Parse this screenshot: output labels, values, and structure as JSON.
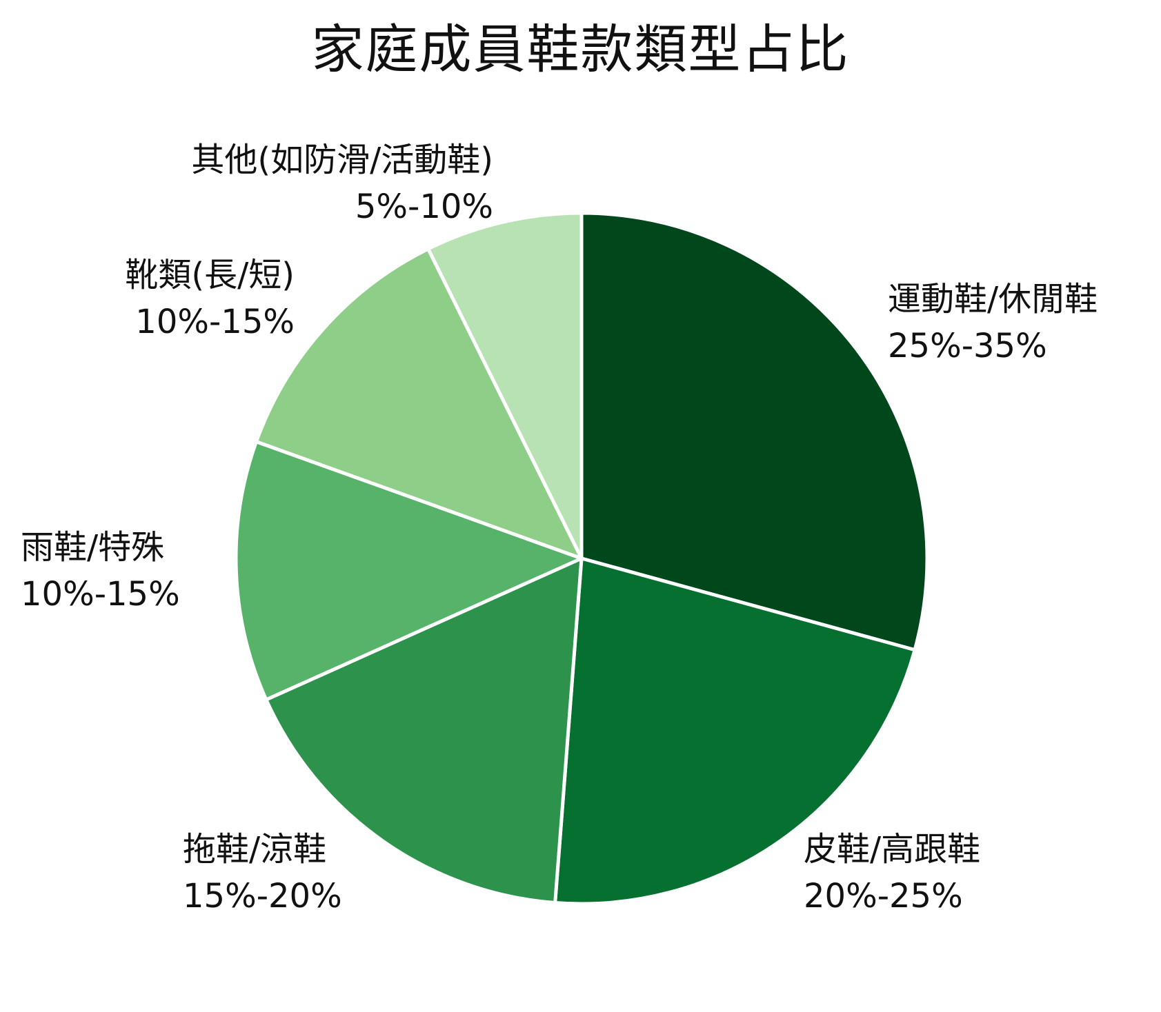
{
  "chart_data": {
    "type": "pie",
    "title": "家庭成員鞋款類型占比",
    "categories": [
      "運動鞋/休閒鞋",
      "皮鞋/高跟鞋",
      "拖鞋/涼鞋",
      "雨鞋/特殊",
      "靴類(長/短)",
      "其他(如防滑/活動鞋)"
    ],
    "ranges": [
      "25%-35%",
      "20%-25%",
      "15%-20%",
      "10%-15%",
      "10%-15%",
      "5%-10%"
    ],
    "values": [
      30,
      22.5,
      17.5,
      12.5,
      12.5,
      7.5
    ],
    "colors": [
      "#00471c",
      "#067030",
      "#2d924c",
      "#56b369",
      "#8fce89",
      "#b8e2b3"
    ],
    "start_angle": "12 o'clock, clockwise",
    "legend": "none (direct labels)"
  },
  "title": "家庭成員鞋款類型占比",
  "labels": [
    {
      "name": "運動鞋/休閒鞋",
      "range": "25%-35%"
    },
    {
      "name": "皮鞋/高跟鞋",
      "range": "20%-25%"
    },
    {
      "name": "拖鞋/涼鞋",
      "range": "15%-20%"
    },
    {
      "name": "雨鞋/特殊",
      "range": "10%-15%"
    },
    {
      "name": "靴類(長/短)",
      "range": "10%-15%"
    },
    {
      "name": "其他(如防滑/活動鞋)",
      "range": "5%-10%"
    }
  ]
}
